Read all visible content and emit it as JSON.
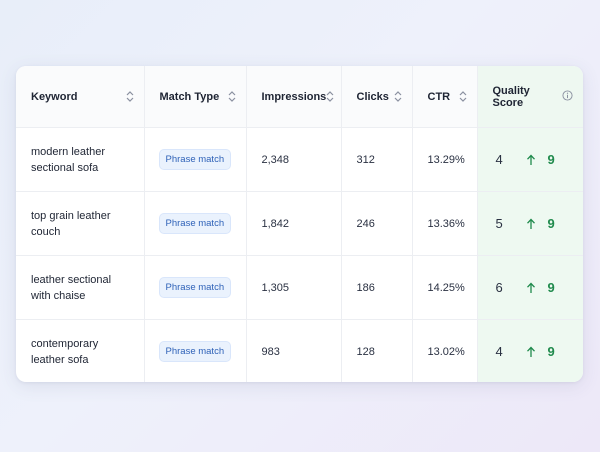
{
  "columns": [
    "Keyword",
    "Match Type",
    "Impressions",
    "Clicks",
    "CTR",
    "Quality Score"
  ],
  "rows": [
    {
      "keyword_line1": "modern leather",
      "keyword_line2": "sectional sofa",
      "match_type": "Phrase match",
      "impressions": "2,348",
      "clicks": "312",
      "ctr": "13.29%",
      "qs_old": "4",
      "qs_new": "9"
    },
    {
      "keyword_line1": "top grain leather",
      "keyword_line2": "couch",
      "match_type": "Phrase match",
      "impressions": "1,842",
      "clicks": "246",
      "ctr": "13.36%",
      "qs_old": "5",
      "qs_new": "9"
    },
    {
      "keyword_line1": "leather sectional",
      "keyword_line2": "with chaise",
      "match_type": "Phrase match",
      "impressions": "1,305",
      "clicks": "186",
      "ctr": "14.25%",
      "qs_old": "6",
      "qs_new": "9"
    },
    {
      "keyword_line1": "contemporary",
      "keyword_line2": "leather sofa",
      "match_type": "Phrase match",
      "impressions": "983",
      "clicks": "128",
      "ctr": "13.02%",
      "qs_old": "4",
      "qs_new": "9"
    }
  ],
  "icons": {
    "sort": "sort-icon",
    "info": "info-icon",
    "up": "arrow-up-icon"
  },
  "colors": {
    "accent_green": "#1f8a4c",
    "badge_blue": "#2f62b8",
    "qs_bg": "#eef9f1"
  }
}
